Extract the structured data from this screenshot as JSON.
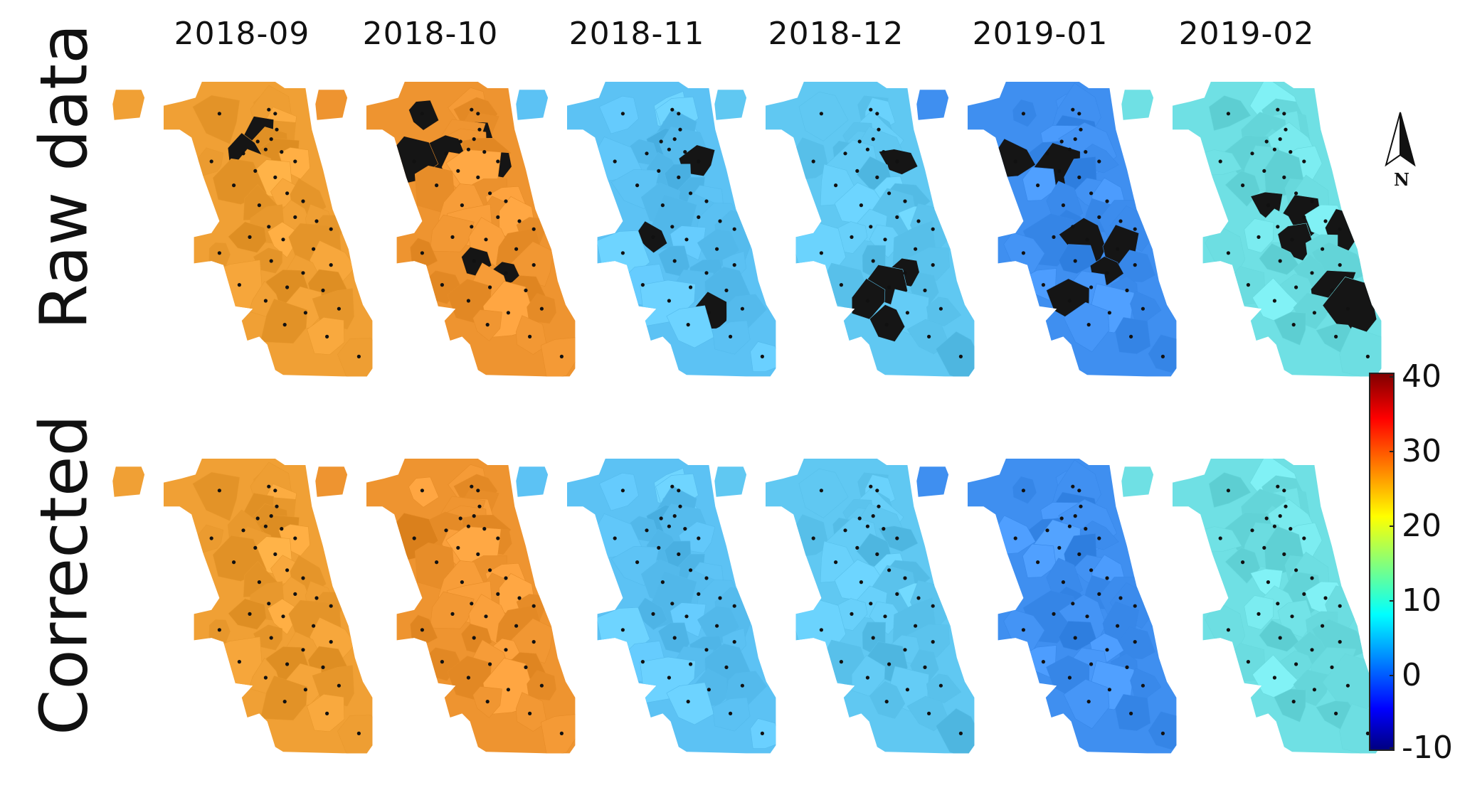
{
  "columns": [
    "2018-09",
    "2018-10",
    "2018-11",
    "2018-12",
    "2019-01",
    "2019-02"
  ],
  "rows": [
    "Raw data",
    "Corrected"
  ],
  "colorbar": {
    "min": -10,
    "max": 40,
    "ticks": [
      "40",
      "30",
      "20",
      "10",
      "0",
      "-10"
    ],
    "colormap": "jet"
  },
  "north_arrow": {
    "label": "N"
  },
  "missing_color": "#151515",
  "maps": [
    {
      "month": "2018-09",
      "row": "Raw data",
      "base_color": "#f0a035",
      "missing_regions": 2
    },
    {
      "month": "2018-10",
      "row": "Raw data",
      "base_color": "#ee9430",
      "missing_regions": 7
    },
    {
      "month": "2018-11",
      "row": "Raw data",
      "base_color": "#5cc2f4",
      "missing_regions": 3
    },
    {
      "month": "2018-12",
      "row": "Raw data",
      "base_color": "#60c8f2",
      "missing_regions": 5
    },
    {
      "month": "2019-01",
      "row": "Raw data",
      "base_color": "#3f8ff0",
      "missing_regions": 6
    },
    {
      "month": "2019-02",
      "row": "Raw data",
      "base_color": "#6fe0e4",
      "missing_regions": 6
    },
    {
      "month": "2018-09",
      "row": "Corrected",
      "base_color": "#f0a035",
      "missing_regions": 0
    },
    {
      "month": "2018-10",
      "row": "Corrected",
      "base_color": "#ee9430",
      "missing_regions": 0
    },
    {
      "month": "2018-11",
      "row": "Corrected",
      "base_color": "#5cc2f4",
      "missing_regions": 0
    },
    {
      "month": "2018-12",
      "row": "Corrected",
      "base_color": "#60c8f2",
      "missing_regions": 0
    },
    {
      "month": "2019-01",
      "row": "Corrected",
      "base_color": "#3f8ff0",
      "missing_regions": 0
    },
    {
      "month": "2019-02",
      "row": "Corrected",
      "base_color": "#6fe0e4",
      "missing_regions": 0
    }
  ]
}
